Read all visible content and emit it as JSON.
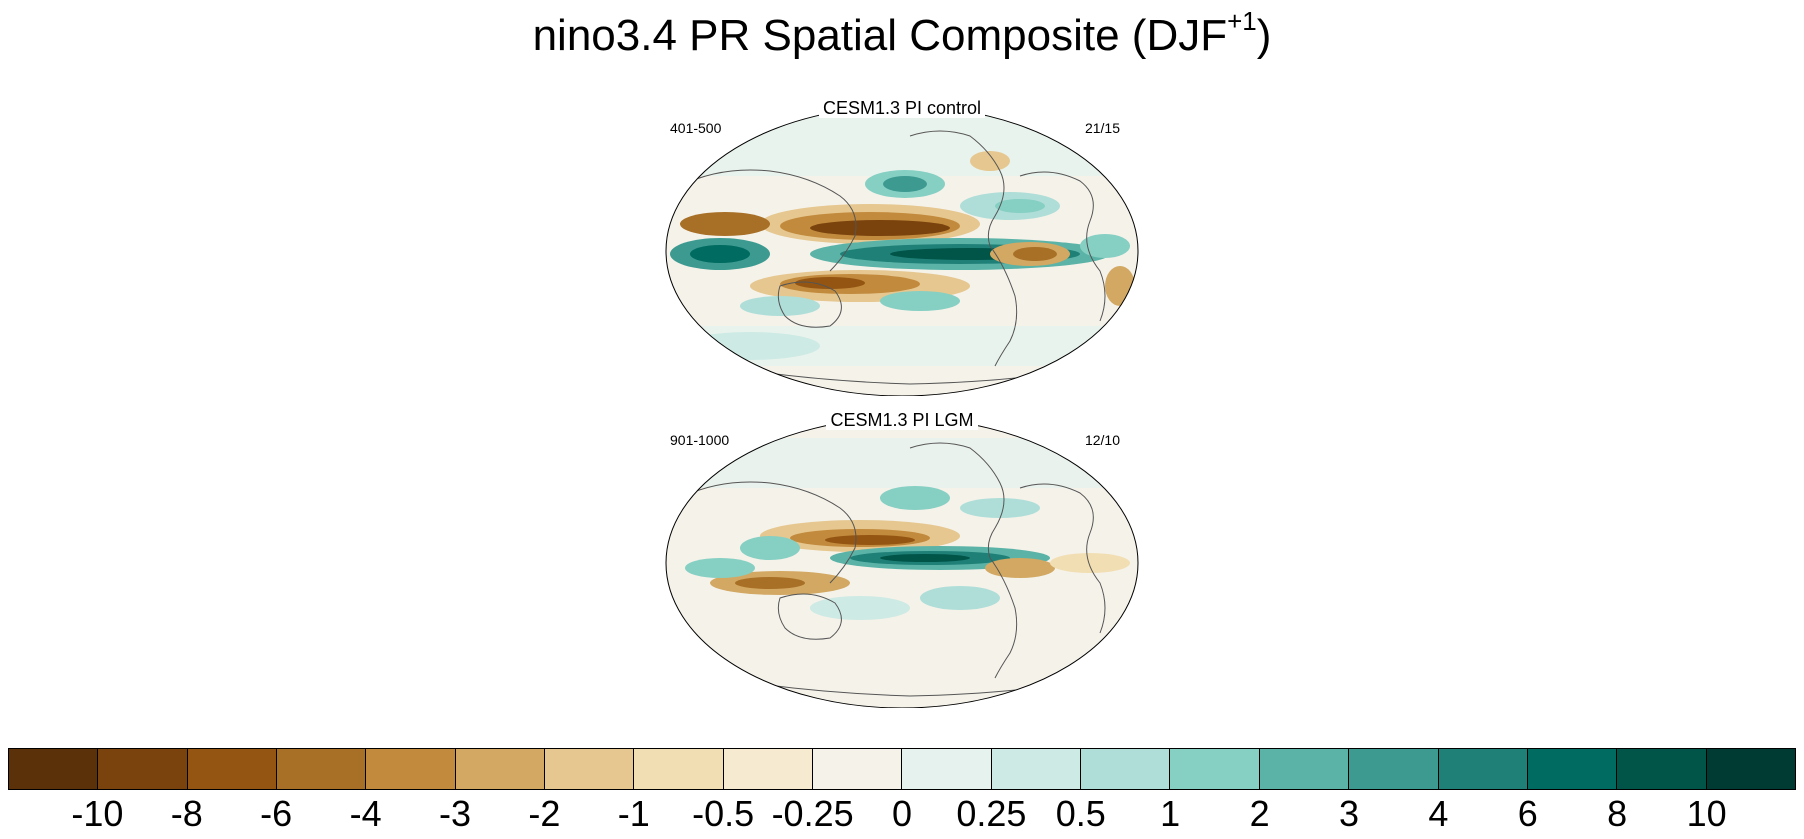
{
  "title": {
    "main": "nino3.4 PR Spatial Composite (DJF",
    "superscript": "+1",
    "close": ")"
  },
  "panels": [
    {
      "title": "CESM1.3 PI control",
      "left_label": "401-500",
      "right_label": "21/15"
    },
    {
      "title": "CESM1.3 PI LGM",
      "left_label": "901-1000",
      "right_label": "12/10"
    }
  ],
  "colorbar": {
    "colors": [
      "#5a3108",
      "#7a430d",
      "#945512",
      "#a86f26",
      "#c28a3d",
      "#d2a862",
      "#e5c78f",
      "#f2deb3",
      "#f6ebd0",
      "#f5f2ea",
      "#e6f2ee",
      "#cdeae4",
      "#afded8",
      "#86cfc3",
      "#5bb3a7",
      "#3c9a91",
      "#1f8078",
      "#006b61",
      "#005448",
      "#003b33"
    ],
    "labels": [
      "-10",
      "-8",
      "-6",
      "-4",
      "-3",
      "-2",
      "-1",
      "-0.5",
      "-0.25",
      "0",
      "0.25",
      "0.5",
      "1",
      "2",
      "3",
      "4",
      "6",
      "8",
      "10"
    ]
  }
}
